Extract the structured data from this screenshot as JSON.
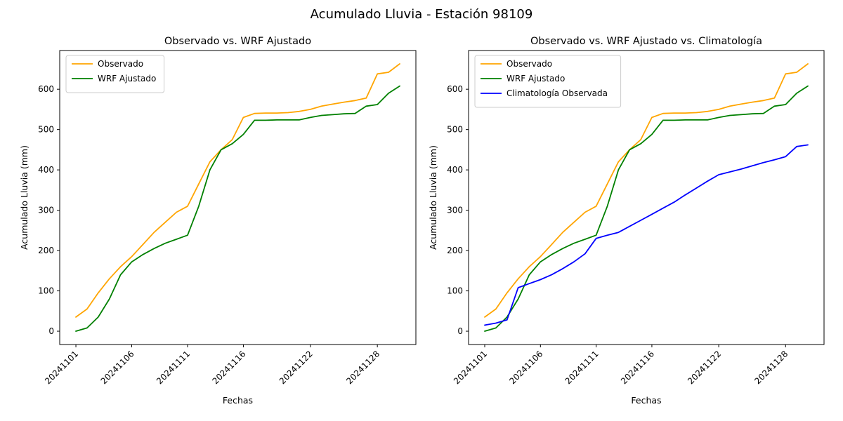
{
  "figure": {
    "suptitle": "Acumulado Lluvia - Estación 98109",
    "background": "#ffffff"
  },
  "chart_data": [
    {
      "type": "line",
      "title": "Observado vs. WRF Ajustado",
      "xlabel": "Fechas",
      "ylabel": "Acumulado Lluvia (mm)",
      "x_categories": [
        "20241101",
        "20241102",
        "20241103",
        "20241104",
        "20241105",
        "20241106",
        "20241107",
        "20241108",
        "20241109",
        "20241110",
        "20241111",
        "20241112",
        "20241113",
        "20241114",
        "20241115",
        "20241116",
        "20241117",
        "20241118",
        "20241119",
        "20241120",
        "20241121",
        "20241122",
        "20241123",
        "20241124",
        "20241125",
        "20241126",
        "20241127",
        "20241128",
        "20241129",
        "20241130"
      ],
      "xtick_indices": [
        0,
        5,
        10,
        15,
        21,
        27
      ],
      "xtick_labels": [
        "20241101",
        "20241106",
        "20241111",
        "20241116",
        "20241122",
        "20241128"
      ],
      "yticks": [
        0,
        100,
        200,
        300,
        400,
        500,
        600
      ],
      "ylim": [
        -33,
        696
      ],
      "xlim": [
        -1.45,
        30.45
      ],
      "grid": false,
      "legend_position": "upper-left",
      "series": [
        {
          "name": "Observado",
          "color": "#ffa500",
          "values": [
            35,
            55,
            95,
            130,
            160,
            185,
            215,
            245,
            270,
            295,
            310,
            365,
            420,
            450,
            475,
            530,
            540,
            541,
            541,
            542,
            545,
            550,
            558,
            563,
            568,
            572,
            578,
            638,
            642,
            663
          ]
        },
        {
          "name": "WRF Ajustado",
          "color": "#008000",
          "values": [
            0,
            8,
            35,
            80,
            140,
            172,
            190,
            205,
            218,
            228,
            238,
            310,
            400,
            450,
            465,
            488,
            523,
            523,
            524,
            524,
            524,
            530,
            535,
            537,
            539,
            540,
            558,
            562,
            590,
            608
          ]
        }
      ]
    },
    {
      "type": "line",
      "title": "Observado vs. WRF Ajustado vs. Climatología",
      "xlabel": "Fechas",
      "ylabel": "Acumulado Lluvia (mm)",
      "x_categories": [
        "20241101",
        "20241102",
        "20241103",
        "20241104",
        "20241105",
        "20241106",
        "20241107",
        "20241108",
        "20241109",
        "20241110",
        "20241111",
        "20241112",
        "20241113",
        "20241114",
        "20241115",
        "20241116",
        "20241117",
        "20241118",
        "20241119",
        "20241120",
        "20241121",
        "20241122",
        "20241123",
        "20241124",
        "20241125",
        "20241126",
        "20241127",
        "20241128",
        "20241129",
        "20241130"
      ],
      "xtick_indices": [
        0,
        5,
        10,
        15,
        21,
        27
      ],
      "xtick_labels": [
        "20241101",
        "20241106",
        "20241111",
        "20241116",
        "20241122",
        "20241128"
      ],
      "yticks": [
        0,
        100,
        200,
        300,
        400,
        500,
        600
      ],
      "ylim": [
        -33,
        696
      ],
      "xlim": [
        -1.45,
        30.45
      ],
      "grid": false,
      "legend_position": "upper-left",
      "series": [
        {
          "name": "Observado",
          "color": "#ffa500",
          "values": [
            35,
            55,
            95,
            130,
            160,
            185,
            215,
            245,
            270,
            295,
            310,
            365,
            420,
            450,
            475,
            530,
            540,
            541,
            541,
            542,
            545,
            550,
            558,
            563,
            568,
            572,
            578,
            638,
            642,
            663
          ]
        },
        {
          "name": "WRF Ajustado",
          "color": "#008000",
          "values": [
            0,
            8,
            35,
            80,
            140,
            172,
            190,
            205,
            218,
            228,
            238,
            310,
            400,
            450,
            465,
            488,
            523,
            523,
            524,
            524,
            524,
            530,
            535,
            537,
            539,
            540,
            558,
            562,
            590,
            608
          ]
        },
        {
          "name": "Climatología Observada",
          "color": "#0000ff",
          "values": [
            15,
            20,
            28,
            108,
            118,
            128,
            140,
            155,
            172,
            192,
            230,
            238,
            245,
            260,
            275,
            290,
            305,
            320,
            338,
            355,
            372,
            388,
            395,
            402,
            410,
            418,
            425,
            433,
            458,
            462
          ]
        }
      ]
    }
  ]
}
